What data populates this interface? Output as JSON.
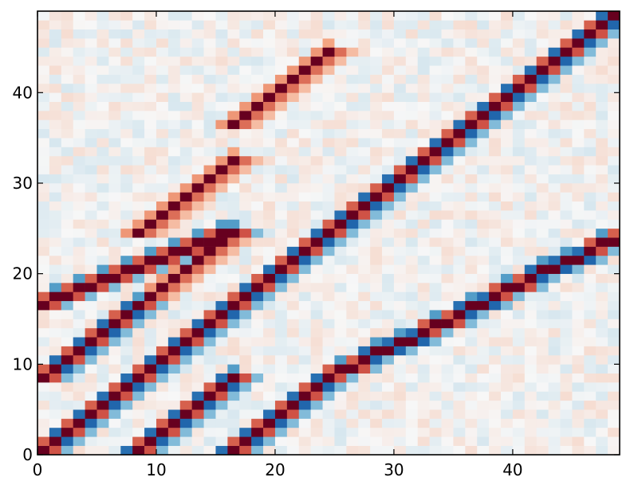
{
  "chart_data": {
    "type": "heatmap",
    "title": "",
    "xlabel": "",
    "ylabel": "",
    "n_rows": 49,
    "n_cols": 49,
    "xlim": [
      0,
      49
    ],
    "ylim": [
      0,
      49
    ],
    "x_ticks": [
      0,
      10,
      20,
      30,
      40
    ],
    "y_ticks": [
      0,
      10,
      20,
      30,
      40
    ],
    "x_tick_labels": [
      "0",
      "10",
      "20",
      "30",
      "40"
    ],
    "y_tick_labels": [
      "0",
      "10",
      "20",
      "30",
      "40"
    ],
    "colormap": "diverging red-white-blue (RdBu)",
    "colors": {
      "strong_negative": "#053061",
      "negative": "#2166ac",
      "weak_negative": "#92c5de",
      "neutral": "#f7f7f7",
      "weak_positive": "#f4a582",
      "positive": "#d6604d",
      "strong_positive": "#67001f"
    },
    "value_range": [
      -1,
      1
    ],
    "diagonal_bands": [
      {
        "x_start": 0,
        "x_end": 8,
        "y_start": 0,
        "y_end": 8,
        "slope": 1,
        "pattern": "alternating-positive-negative"
      },
      {
        "x_start": 0,
        "x_end": 8,
        "y_start": 8,
        "y_end": 16,
        "slope": 1,
        "pattern": "alternating-positive-negative"
      },
      {
        "x_start": 8,
        "x_end": 16,
        "y_start": 0,
        "y_end": 8,
        "slope": 1,
        "pattern": "alternating-positive-negative"
      },
      {
        "x_start": 8,
        "x_end": 16,
        "y_start": 8,
        "y_end": 16,
        "slope": 1,
        "pattern": "alternating-positive-negative"
      },
      {
        "x_start": 0,
        "x_end": 16,
        "y_start": 16,
        "y_end": 24,
        "slope": 0.5,
        "pattern": "alternating-positive-negative"
      },
      {
        "x_start": 8,
        "x_end": 16,
        "y_start": 16,
        "y_end": 24,
        "slope": 1,
        "pattern": "positive-only"
      },
      {
        "x_start": 16,
        "x_end": 24,
        "y_start": 16,
        "y_end": 24,
        "slope": 1,
        "pattern": "alternating-positive-negative"
      },
      {
        "x_start": 8,
        "x_end": 16,
        "y_start": 24,
        "y_end": 36,
        "slope": 1,
        "pattern": "positive-only"
      },
      {
        "x_start": 16,
        "x_end": 24,
        "y_start": 36,
        "y_end": 49,
        "slope": 1,
        "pattern": "positive-only"
      },
      {
        "x_start": 16,
        "x_end": 24,
        "y_start": 0,
        "y_end": 8,
        "slope": 1,
        "pattern": "alternating-positive-negative"
      },
      {
        "x_start": 24,
        "x_end": 49,
        "y_start": 8,
        "y_end": 24,
        "slope": 0.64,
        "pattern": "alternating-positive-negative"
      },
      {
        "x_start": 24,
        "x_end": 36,
        "y_start": 24,
        "y_end": 36,
        "slope": 1,
        "pattern": "alternating-positive-negative"
      },
      {
        "x_start": 36,
        "x_end": 49,
        "y_start": 36,
        "y_end": 49,
        "slope": 1,
        "pattern": "alternating-positive-negative"
      }
    ]
  }
}
